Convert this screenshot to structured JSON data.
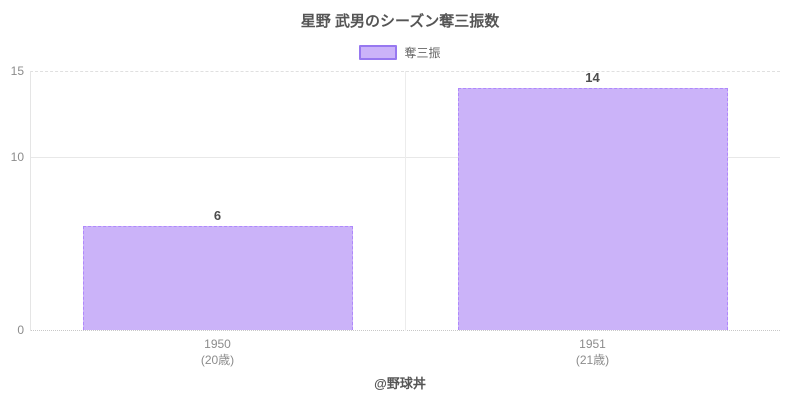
{
  "chart_data": {
    "type": "bar",
    "title": "星野 武男のシーズン奪三振数",
    "series_name": "奪三振",
    "categories": [
      "1950",
      "1951"
    ],
    "category_sublabels": [
      "(20歳)",
      "(21歳)"
    ],
    "values": [
      6,
      14
    ],
    "value_labels": [
      "6",
      "14"
    ],
    "ylim": [
      0,
      15
    ],
    "yticks": [
      0,
      10,
      15
    ],
    "grid": true,
    "legend_position": "top",
    "annotation": "@野球丼",
    "colors": {
      "accent": "#9966ff",
      "bar_fill": "#cbb3f9",
      "bar_border": "#9778f0",
      "grid_line": "#e8e8e8",
      "zero_line": "#c8c8c8",
      "tick_label": "#8c8c8c",
      "title_text": "#555555"
    }
  }
}
